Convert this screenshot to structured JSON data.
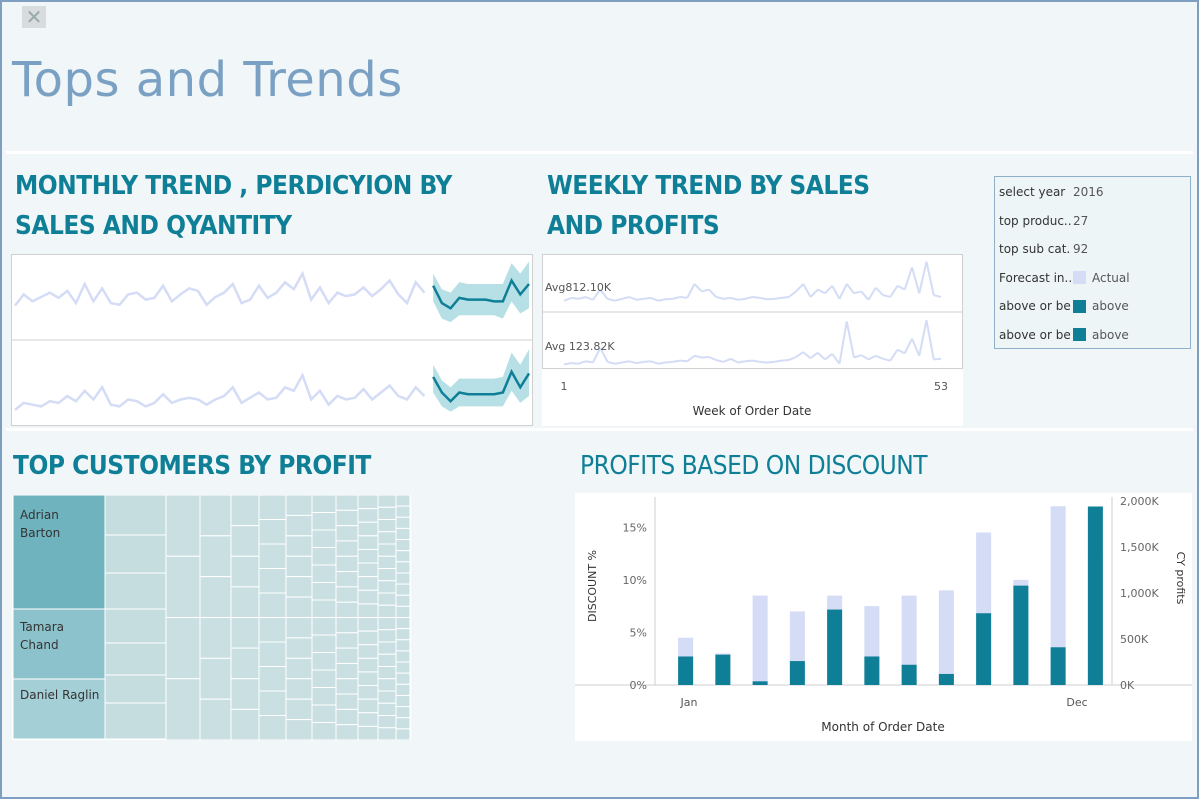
{
  "dashboard": {
    "title": "Tops and Trends",
    "close_label": "✕"
  },
  "monthly": {
    "title_line1": "MONTHLY TREND , PERDICYION BY",
    "title_line2": "SALES AND QYANTITY"
  },
  "weekly": {
    "title_line1": "WEEKLY TREND BY SALES",
    "title_line2": "AND PROFITS",
    "avg_sales_label": "Avg812.10K",
    "avg_profit_label": "Avg 123.82K",
    "x_start": "1",
    "x_end": "53",
    "x_axis_title": "Week of Order Date"
  },
  "filters": {
    "rows": [
      {
        "label": "select year",
        "value": "2016"
      },
      {
        "label": "top produc..",
        "value": "27"
      },
      {
        "label": "top sub cat..",
        "value": "92"
      },
      {
        "label": "Forecast in..",
        "value": "Actual",
        "color": "#d4dcf6"
      },
      {
        "label": "above or be..",
        "value": "above",
        "color": "#0e7f96"
      },
      {
        "label": "above or be..",
        "value": "above",
        "color": "#0e7f96"
      }
    ]
  },
  "customers": {
    "title": "TOP CUSTOMERS BY PROFIT",
    "labels": [
      "Adrian Barton",
      "Tamara Chand",
      "Daniel Raglin"
    ]
  },
  "discount": {
    "title": "PROFITS BASED ON DISCOUNT",
    "left_axis_title": "DISCOUNT %",
    "right_axis_title": "CY profits",
    "x_axis_title": "Month of Order Date",
    "left_ticks": [
      "0%",
      "5%",
      "10%",
      "15%"
    ],
    "right_ticks": [
      "0K",
      "500K",
      "1,000K",
      "1,500K",
      "2,000K"
    ],
    "x_tick_first": "Jan",
    "x_tick_last": "Dec"
  },
  "colors": {
    "accent": "#0e7f96",
    "light_series": "#d4dcf6",
    "forecast_band": "#a9dbe0",
    "title": "#7aa0c3"
  },
  "chart_data": [
    {
      "type": "line",
      "name": "monthly-sales",
      "x": [
        1,
        2,
        3,
        4,
        5,
        6,
        7,
        8,
        9,
        10,
        11,
        12,
        13,
        14,
        15,
        16,
        17,
        18,
        19,
        20,
        21,
        22,
        23,
        24,
        25,
        26,
        27,
        28,
        29,
        30,
        31,
        32,
        33,
        34,
        35,
        36,
        37,
        38,
        39,
        40,
        41,
        42,
        43,
        44,
        45,
        46,
        47,
        48
      ],
      "actual": [
        35,
        48,
        40,
        45,
        50,
        44,
        52,
        38,
        60,
        40,
        55,
        38,
        36,
        48,
        50,
        42,
        44,
        58,
        40,
        48,
        55,
        52,
        36,
        45,
        50,
        60,
        38,
        42,
        58,
        44,
        50,
        62,
        54,
        72,
        42,
        56,
        38,
        50,
        46,
        48,
        56,
        46,
        54,
        64,
        48,
        38,
        62,
        50
      ],
      "forecast_x": [
        49,
        50,
        51,
        52,
        53,
        54,
        55,
        56,
        57,
        58,
        59,
        60
      ],
      "forecast": [
        58,
        38,
        32,
        44,
        42,
        42,
        42,
        40,
        40,
        64,
        48,
        60
      ],
      "forecast_low": [
        40,
        20,
        16,
        24,
        24,
        24,
        24,
        24,
        20,
        40,
        26,
        32
      ],
      "forecast_high": [
        72,
        54,
        50,
        62,
        60,
        60,
        60,
        60,
        60,
        84,
        72,
        86
      ]
    },
    {
      "type": "line",
      "name": "monthly-quantity",
      "x": [
        1,
        2,
        3,
        4,
        5,
        6,
        7,
        8,
        9,
        10,
        11,
        12,
        13,
        14,
        15,
        16,
        17,
        18,
        19,
        20,
        21,
        22,
        23,
        24,
        25,
        26,
        27,
        28,
        29,
        30,
        31,
        32,
        33,
        34,
        35,
        36,
        37,
        38,
        39,
        40,
        41,
        42,
        43,
        44,
        45,
        46,
        47,
        48
      ],
      "actual": [
        14,
        22,
        20,
        18,
        24,
        22,
        30,
        24,
        36,
        26,
        40,
        20,
        18,
        26,
        24,
        18,
        22,
        32,
        22,
        26,
        28,
        26,
        20,
        26,
        30,
        40,
        22,
        28,
        34,
        26,
        28,
        40,
        36,
        54,
        26,
        36,
        20,
        30,
        26,
        28,
        38,
        26,
        34,
        42,
        30,
        26,
        40,
        30
      ],
      "forecast_x": [
        49,
        50,
        51,
        52,
        53,
        54,
        55,
        56,
        57,
        58,
        59,
        60
      ],
      "forecast": [
        52,
        34,
        24,
        34,
        32,
        32,
        32,
        32,
        34,
        58,
        40,
        56
      ],
      "forecast_low": [
        34,
        18,
        12,
        18,
        18,
        18,
        18,
        18,
        18,
        36,
        22,
        30
      ],
      "forecast_high": [
        66,
        48,
        40,
        50,
        50,
        50,
        50,
        50,
        52,
        80,
        66,
        84
      ]
    },
    {
      "type": "line",
      "name": "weekly-sales",
      "ylabel": "",
      "x": [
        1,
        2,
        3,
        4,
        5,
        6,
        7,
        8,
        9,
        10,
        11,
        12,
        13,
        14,
        15,
        16,
        17,
        18,
        19,
        20,
        21,
        22,
        23,
        24,
        25,
        26,
        27,
        28,
        29,
        30,
        31,
        32,
        33,
        34,
        35,
        36,
        37,
        38,
        39,
        40,
        41,
        42,
        43,
        44,
        45,
        46,
        47,
        48,
        49,
        50,
        51,
        52,
        53
      ],
      "values": [
        500,
        650,
        600,
        700,
        550,
        1100,
        600,
        500,
        600,
        700,
        550,
        600,
        650,
        500,
        580,
        600,
        700,
        650,
        1400,
        1000,
        1100,
        700,
        600,
        650,
        550,
        600,
        700,
        650,
        580,
        600,
        650,
        700,
        1000,
        1400,
        700,
        1100,
        900,
        1300,
        600,
        1400,
        900,
        1000,
        550,
        1200,
        800,
        700,
        1300,
        1100,
        2300,
        900,
        2600,
        800,
        700
      ],
      "average": 812.1
    },
    {
      "type": "line",
      "name": "weekly-profits",
      "x": [
        1,
        2,
        3,
        4,
        5,
        6,
        7,
        8,
        9,
        10,
        11,
        12,
        13,
        14,
        15,
        16,
        17,
        18,
        19,
        20,
        21,
        22,
        23,
        24,
        25,
        26,
        27,
        28,
        29,
        30,
        31,
        32,
        33,
        34,
        35,
        36,
        37,
        38,
        39,
        40,
        41,
        42,
        43,
        44,
        45,
        46,
        47,
        48,
        49,
        50,
        51,
        52,
        53
      ],
      "values": [
        60,
        80,
        70,
        110,
        90,
        330,
        100,
        70,
        90,
        110,
        80,
        100,
        110,
        70,
        90,
        100,
        120,
        110,
        200,
        170,
        180,
        130,
        100,
        150,
        90,
        110,
        120,
        100,
        90,
        100,
        120,
        130,
        180,
        260,
        160,
        250,
        140,
        230,
        70,
        760,
        170,
        210,
        140,
        200,
        150,
        120,
        300,
        240,
        480,
        200,
        780,
        140,
        150
      ],
      "average": 123.82
    },
    {
      "type": "bar",
      "name": "profits-based-on-discount",
      "categories": [
        "Jan",
        "Feb",
        "Mar",
        "Apr",
        "May",
        "Jun",
        "Jul",
        "Aug",
        "Sep",
        "Oct",
        "Nov",
        "Dec"
      ],
      "series": [
        {
          "name": "DISCOUNT %",
          "values": [
            4.5,
            3.0,
            8.5,
            7.0,
            8.5,
            7.5,
            8.5,
            9.0,
            14.5,
            10.0,
            17.0,
            12.0
          ]
        },
        {
          "name": "CY profits",
          "values": [
            310000,
            330000,
            40000,
            260000,
            820000,
            310000,
            220000,
            120000,
            780000,
            1080000,
            410000,
            1940000
          ]
        }
      ],
      "ylim_left": [
        0,
        17.5
      ],
      "ylim_right": [
        0,
        2000000
      ]
    }
  ]
}
